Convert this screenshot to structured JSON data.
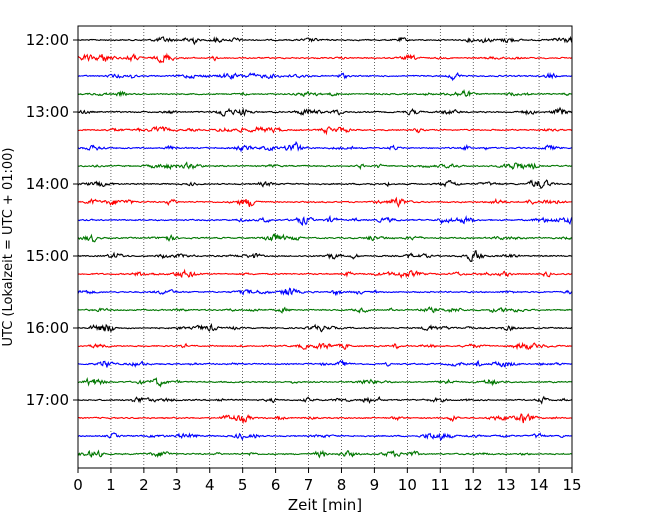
{
  "chart_data": {
    "type": "line",
    "title": "",
    "xlabel": "Zeit  [min]",
    "ylabel": "UTC (Lokalzeit = UTC + 01:00)",
    "xlim": [
      0,
      15
    ],
    "x_ticks": [
      0,
      1,
      2,
      3,
      4,
      5,
      6,
      7,
      8,
      9,
      10,
      11,
      12,
      13,
      14,
      15
    ],
    "x_tick_labels": [
      "0",
      "1",
      "2",
      "3",
      "4",
      "5",
      "6",
      "7",
      "8",
      "9",
      "10",
      "11",
      "12",
      "13",
      "14",
      "15"
    ],
    "y_tick_labels": [
      "12:00",
      "13:00",
      "14:00",
      "15:00",
      "16:00",
      "17:00"
    ],
    "grid": "x-dotted",
    "legend": "none",
    "trace_interval_minutes": 15,
    "trace_start": "12:00",
    "trace_count": 24,
    "color_cycle": [
      "#000000",
      "#ff0000",
      "#0000ff",
      "#007700"
    ]
  }
}
